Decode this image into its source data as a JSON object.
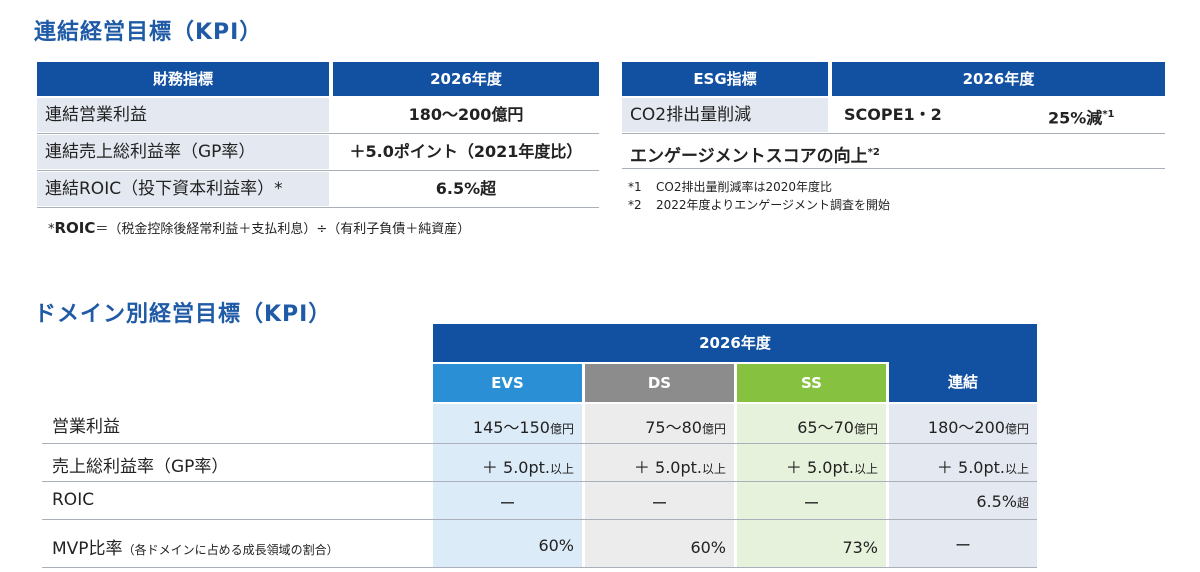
{
  "titles": {
    "consolidated": "連結経営目標（KPI）",
    "domain": "ドメイン別経営目標（KPI）"
  },
  "finance_table": {
    "header_label": "財務指標",
    "header_year": "2026年度",
    "rows": [
      {
        "label": "連結営業利益",
        "value": "180〜200億円"
      },
      {
        "label": "連結売上総利益率（GP率）",
        "value": "＋5.0ポイント（2021年度比）"
      },
      {
        "label": "連結ROIC（投下資本利益率）*",
        "value": "6.5%超"
      }
    ],
    "note_prefix": "*",
    "note_bold": "ROIC",
    "note_text": "＝（税金控除後経常利益＋支払利息）÷（有利子負債＋純資産）"
  },
  "esg_table": {
    "header_label": "ESG指標",
    "header_year": "2026年度",
    "row1_label": "CO2排出量削減",
    "row1_scope": "SCOPE1・2",
    "row1_value": "25%減",
    "row1_sup": "*1",
    "row2_text": "エンゲージメントスコアの向上",
    "row2_sup": "*2",
    "notes": [
      {
        "mark": "*1",
        "text": "CO2排出量削減率は2020年度比"
      },
      {
        "mark": "*2",
        "text": "2022年度よりエンゲージメント調査を開始"
      }
    ]
  },
  "domain_table": {
    "year_header": "2026年度",
    "columns": {
      "evs": "EVS",
      "ds": "DS",
      "ss": "SS",
      "consolidated": "連結"
    },
    "colors": {
      "header": "#1250a1",
      "evs": "#2b8fd6",
      "ds": "#8c8c8c",
      "ss": "#86c13f",
      "evs_bg": "#dcebf8",
      "ds_bg": "#ececec",
      "ss_bg": "#e7f2dc",
      "cons_bg": "#e4e8f0"
    },
    "rows": [
      {
        "label": "営業利益",
        "label_note": "",
        "evs": "145〜150",
        "evs_unit": "億円",
        "ds": "75〜80",
        "ds_unit": "億円",
        "ss": "65〜70",
        "ss_unit": "億円",
        "cons": "180〜200",
        "cons_unit": "億円"
      },
      {
        "label": "売上総利益率（GP率）",
        "label_note": "",
        "evs": "＋ 5.0pt.",
        "evs_unit": "以上",
        "ds": "＋ 5.0pt.",
        "ds_unit": "以上",
        "ss": "＋ 5.0pt.",
        "ss_unit": "以上",
        "cons": "＋ 5.0pt.",
        "cons_unit": "以上"
      },
      {
        "label": "ROIC",
        "label_note": "",
        "evs": "ー",
        "evs_unit": "",
        "ds": "ー",
        "ds_unit": "",
        "ss": "ー",
        "ss_unit": "",
        "cons": "6.5%",
        "cons_unit": "超"
      },
      {
        "label": "MVP比率",
        "label_note": "（各ドメインに占める成長領域の割合）",
        "evs": "60%",
        "evs_unit": "",
        "ds": "60%",
        "ds_unit": "",
        "ss": "73%",
        "ss_unit": "",
        "cons": "ー",
        "cons_unit": ""
      }
    ]
  }
}
